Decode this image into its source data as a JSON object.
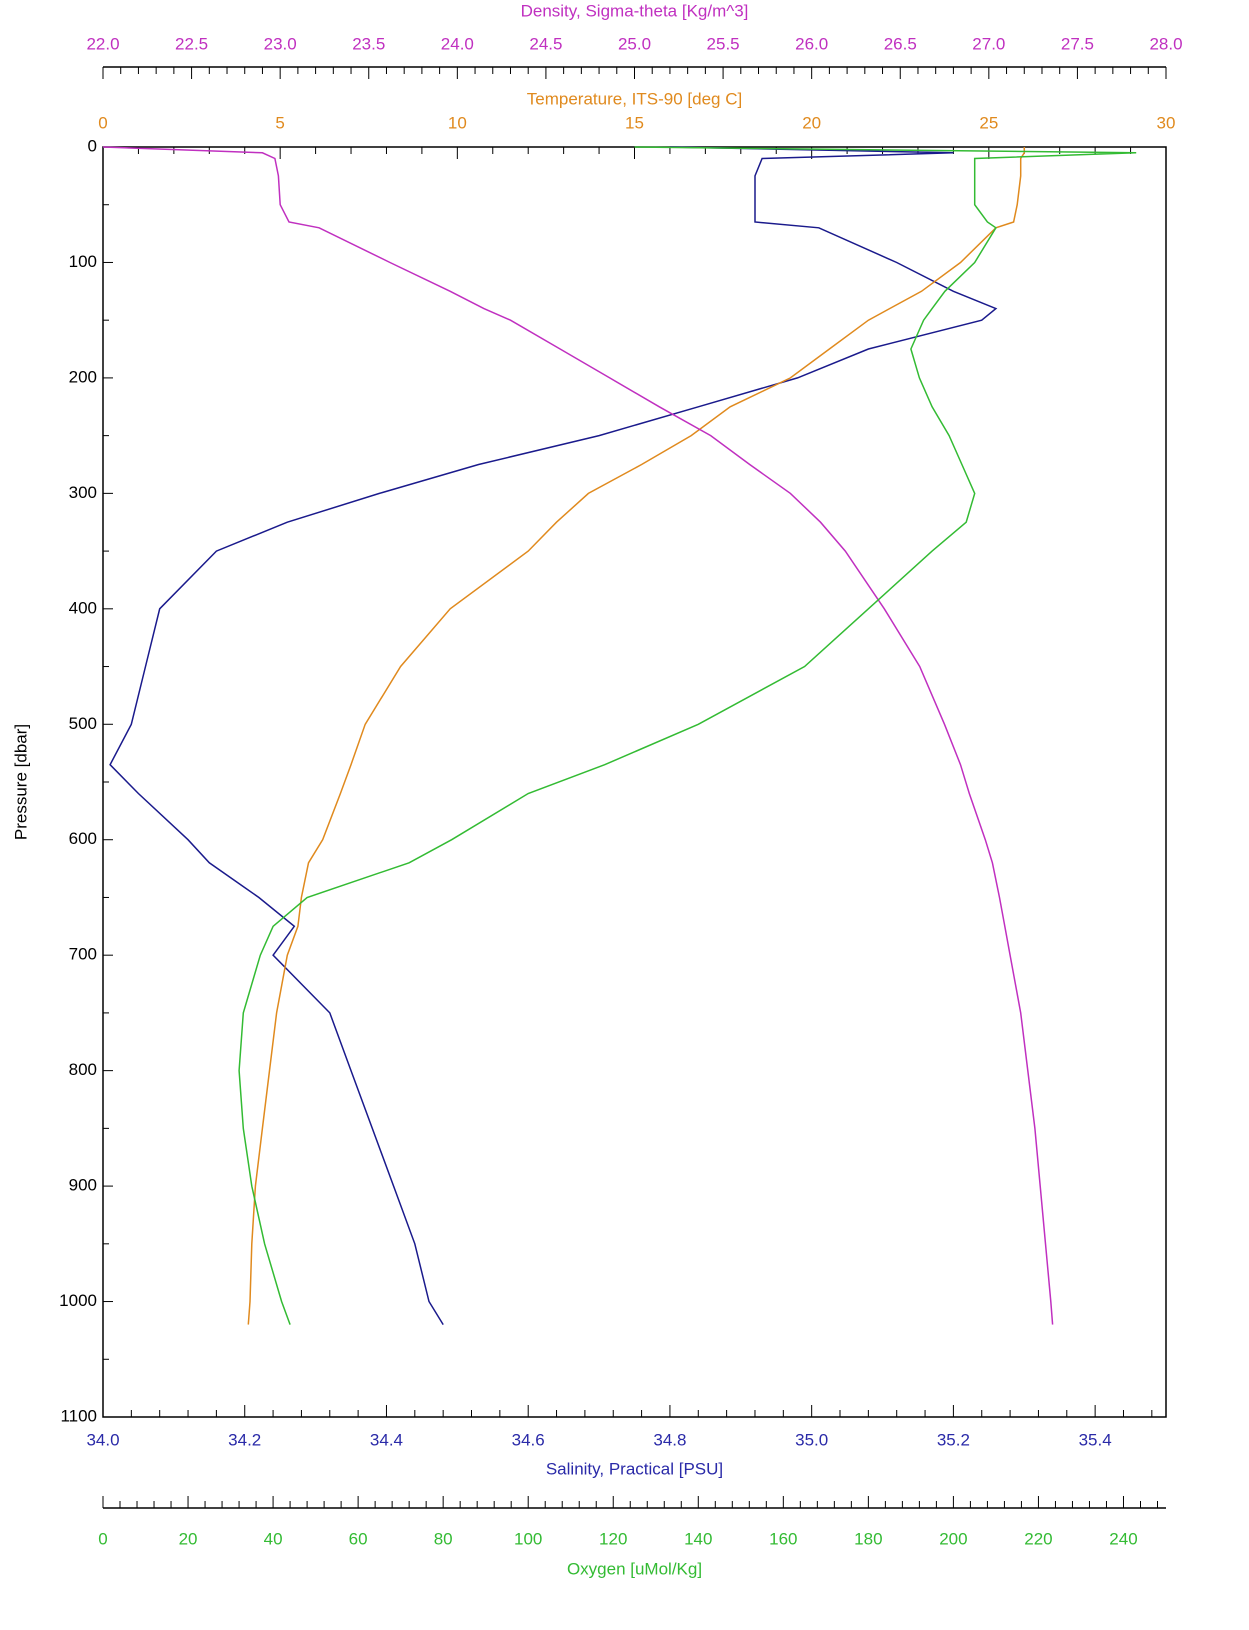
{
  "chart_data": {
    "type": "line",
    "y_label": "Pressure [dbar]",
    "y_inverted": true,
    "ylim": [
      0,
      1100
    ],
    "yticks": [
      0,
      100,
      200,
      300,
      400,
      500,
      600,
      700,
      800,
      900,
      1000,
      1100
    ],
    "x_axes": {
      "density": {
        "title": "Density, Sigma-theta [Kg/m^3]",
        "position": "top",
        "color": "#c030c0",
        "lim": [
          22,
          28
        ],
        "ticks": [
          {
            "value": 22,
            "label": "22.0"
          },
          22.5,
          {
            "value": 23,
            "label": "23.0"
          },
          23.5,
          {
            "value": 24,
            "label": "24.0"
          },
          24.5,
          {
            "value": 25,
            "label": "25.0"
          },
          25.5,
          {
            "value": 26,
            "label": "26.0"
          },
          26.5,
          {
            "value": 27,
            "label": "27.0"
          },
          27.5,
          {
            "value": 28,
            "label": "28.0"
          }
        ]
      },
      "temperature": {
        "title": "Temperature, ITS-90 [deg C]",
        "position": "top-inner",
        "color": "#e08a1e",
        "lim": [
          0,
          30
        ],
        "ticks": [
          0,
          5,
          10,
          15,
          20,
          25,
          30
        ]
      },
      "salinity": {
        "title": "Salinity, Practical [PSU]",
        "position": "bottom-inner",
        "color": "#2a2aa8",
        "lim": [
          34,
          35.5
        ],
        "ticks": [
          {
            "value": 34,
            "label": "34.0"
          },
          34.2,
          34.4,
          34.6,
          34.8,
          {
            "value": 35,
            "label": "35.0"
          },
          35.2,
          35.4
        ]
      },
      "oxygen": {
        "title": "Oxygen [uMol/Kg]",
        "position": "bottom",
        "color": "#33bb33",
        "lim": [
          0,
          250
        ],
        "ticks": [
          0,
          20,
          40,
          60,
          80,
          100,
          120,
          140,
          160,
          180,
          200,
          220,
          240
        ]
      }
    },
    "y": [
      0,
      5,
      10,
      25,
      50,
      65,
      70,
      100,
      125,
      140,
      150,
      175,
      200,
      225,
      250,
      275,
      300,
      325,
      350,
      400,
      450,
      500,
      535,
      560,
      600,
      620,
      650,
      675,
      700,
      750,
      800,
      850,
      900,
      950,
      1000,
      1020
    ],
    "series": [
      {
        "name": "Salinity",
        "axis": "salinity",
        "color": "#1a1a8c",
        "values": [
          34.8,
          35.2,
          34.93,
          34.92,
          34.92,
          34.92,
          35.01,
          35.12,
          35.2,
          35.26,
          35.24,
          35.08,
          34.98,
          34.84,
          34.7,
          34.53,
          34.39,
          34.26,
          34.16,
          34.08,
          34.06,
          34.04,
          34.01,
          34.05,
          34.12,
          34.15,
          34.22,
          34.27,
          34.24,
          34.32,
          34.35,
          34.38,
          34.41,
          34.44,
          34.46,
          34.48
        ]
      },
      {
        "name": "Temperature",
        "axis": "temperature",
        "color": "#e08a1e",
        "values": [
          26,
          26,
          25.9,
          25.9,
          25.8,
          25.7,
          25.2,
          24.2,
          23.1,
          22.2,
          21.6,
          20.5,
          19.4,
          17.7,
          16.6,
          15.2,
          13.7,
          12.8,
          12.0,
          9.8,
          8.4,
          7.4,
          7.0,
          6.7,
          6.2,
          5.8,
          5.6,
          5.5,
          5.2,
          4.9,
          4.7,
          4.5,
          4.3,
          4.2,
          4.15,
          4.1
        ]
      },
      {
        "name": "Density",
        "axis": "density",
        "color": "#c030c0",
        "values": [
          22.0,
          22.9,
          22.97,
          22.99,
          23.0,
          23.05,
          23.22,
          23.62,
          23.96,
          24.15,
          24.3,
          24.58,
          24.86,
          25.14,
          25.43,
          25.65,
          25.88,
          26.05,
          26.19,
          26.41,
          26.61,
          26.75,
          26.84,
          26.89,
          26.98,
          27.02,
          27.06,
          27.09,
          27.12,
          27.18,
          27.22,
          27.26,
          27.29,
          27.32,
          27.35,
          27.36
        ]
      },
      {
        "name": "Oxygen",
        "axis": "oxygen",
        "color": "#33bb33",
        "values": [
          125,
          243,
          205,
          205,
          205,
          208,
          210,
          205,
          198,
          195,
          193,
          190,
          192,
          195,
          199,
          202,
          205,
          203,
          195,
          180,
          165,
          140,
          118,
          100,
          82,
          72,
          48,
          40,
          37,
          33,
          32,
          33,
          35,
          38,
          42,
          44
        ]
      }
    ]
  }
}
